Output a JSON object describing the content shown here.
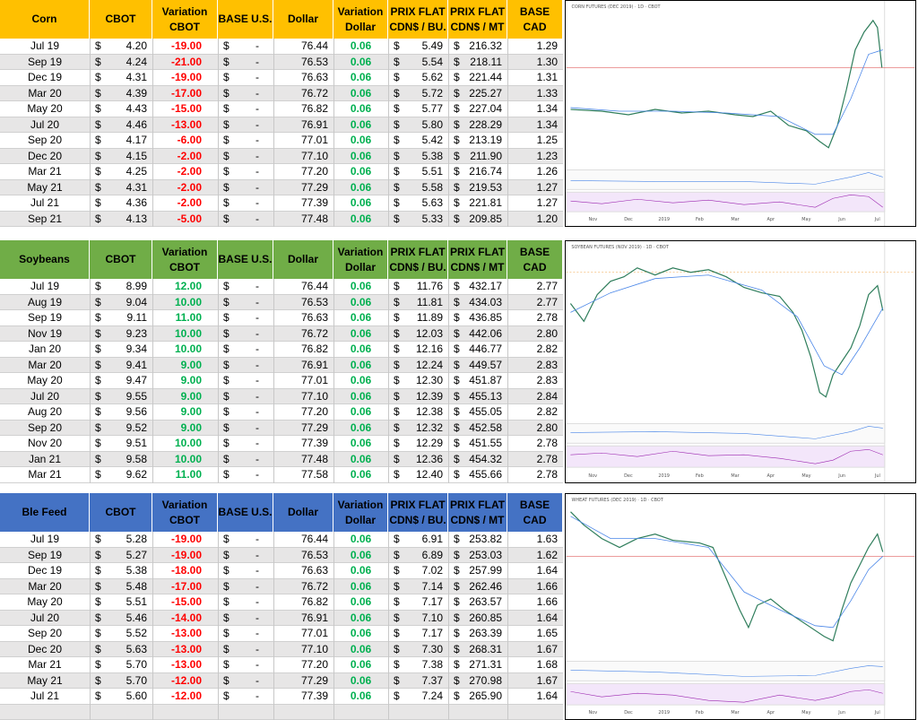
{
  "currency_symbol": "$",
  "empty_value": "-",
  "sections": [
    {
      "header_color": "#ffc000",
      "header": [
        [
          "Corn"
        ],
        [
          "CBOT"
        ],
        [
          "Variation",
          "CBOT"
        ],
        [
          "BASE U.S."
        ],
        [
          "Dollar"
        ],
        [
          "Variation",
          "Dollar"
        ],
        [
          "PRIX FLAT",
          "CDN$ / BU."
        ],
        [
          "PRIX FLAT",
          "CDN$ / MT"
        ],
        [
          "BASE CAD"
        ]
      ],
      "rows": [
        [
          "Jul 19",
          "4.20",
          "-19.00",
          "76.44",
          "0.06",
          "5.49",
          "216.32",
          "1.29"
        ],
        [
          "Sep 19",
          "4.24",
          "-21.00",
          "76.53",
          "0.06",
          "5.54",
          "218.11",
          "1.30"
        ],
        [
          "Dec 19",
          "4.31",
          "-19.00",
          "76.63",
          "0.06",
          "5.62",
          "221.44",
          "1.31"
        ],
        [
          "Mar 20",
          "4.39",
          "-17.00",
          "76.72",
          "0.06",
          "5.72",
          "225.27",
          "1.33"
        ],
        [
          "May 20",
          "4.43",
          "-15.00",
          "76.82",
          "0.06",
          "5.77",
          "227.04",
          "1.34"
        ],
        [
          "Jul 20",
          "4.46",
          "-13.00",
          "76.91",
          "0.06",
          "5.80",
          "228.29",
          "1.34"
        ],
        [
          "Sep 20",
          "4.17",
          "-6.00",
          "77.01",
          "0.06",
          "5.42",
          "213.19",
          "1.25"
        ],
        [
          "Dec 20",
          "4.15",
          "-2.00",
          "77.10",
          "0.06",
          "5.38",
          "211.90",
          "1.23"
        ],
        [
          "Mar 21",
          "4.25",
          "-2.00",
          "77.20",
          "0.06",
          "5.51",
          "216.74",
          "1.26"
        ],
        [
          "May 21",
          "4.31",
          "-2.00",
          "77.29",
          "0.06",
          "5.58",
          "219.53",
          "1.27"
        ],
        [
          "Jul 21",
          "4.36",
          "-2.00",
          "77.39",
          "0.06",
          "5.63",
          "221.81",
          "1.27"
        ],
        [
          "Sep 21",
          "4.13",
          "-5.00",
          "77.48",
          "0.06",
          "5.33",
          "209.85",
          "1.20"
        ]
      ],
      "chart": {
        "title": "CORN FUTURES (DEC 2019) · 1D · CBOT",
        "months": [
          "Nov",
          "Dec",
          "2019",
          "Feb",
          "Mar",
          "Apr",
          "May",
          "Jun",
          "Jul"
        ]
      }
    },
    {
      "header_color": "#70ad47",
      "header": [
        [
          "Soybeans"
        ],
        [
          "CBOT"
        ],
        [
          "Variation",
          "CBOT"
        ],
        [
          "BASE U.S."
        ],
        [
          "Dollar"
        ],
        [
          "Variation",
          "Dollar"
        ],
        [
          "PRIX FLAT",
          "CDN$ / BU."
        ],
        [
          "PRIX FLAT",
          "CDN$ / MT"
        ],
        [
          "BASE CAD"
        ]
      ],
      "rows": [
        [
          "Jul 19",
          "8.99",
          "12.00",
          "76.44",
          "0.06",
          "11.76",
          "432.17",
          "2.77"
        ],
        [
          "Aug 19",
          "9.04",
          "10.00",
          "76.53",
          "0.06",
          "11.81",
          "434.03",
          "2.77"
        ],
        [
          "Sep 19",
          "9.11",
          "11.00",
          "76.63",
          "0.06",
          "11.89",
          "436.85",
          "2.78"
        ],
        [
          "Nov 19",
          "9.23",
          "10.00",
          "76.72",
          "0.06",
          "12.03",
          "442.06",
          "2.80"
        ],
        [
          "Jan 20",
          "9.34",
          "10.00",
          "76.82",
          "0.06",
          "12.16",
          "446.77",
          "2.82"
        ],
        [
          "Mar 20",
          "9.41",
          "9.00",
          "76.91",
          "0.06",
          "12.24",
          "449.57",
          "2.83"
        ],
        [
          "May 20",
          "9.47",
          "9.00",
          "77.01",
          "0.06",
          "12.30",
          "451.87",
          "2.83"
        ],
        [
          "Jul 20",
          "9.55",
          "9.00",
          "77.10",
          "0.06",
          "12.39",
          "455.13",
          "2.84"
        ],
        [
          "Aug 20",
          "9.56",
          "9.00",
          "77.20",
          "0.06",
          "12.38",
          "455.05",
          "2.82"
        ],
        [
          "Sep 20",
          "9.52",
          "9.00",
          "77.29",
          "0.06",
          "12.32",
          "452.58",
          "2.80"
        ],
        [
          "Nov 20",
          "9.51",
          "10.00",
          "77.39",
          "0.06",
          "12.29",
          "451.55",
          "2.78"
        ],
        [
          "Jan 21",
          "9.58",
          "10.00",
          "77.48",
          "0.06",
          "12.36",
          "454.32",
          "2.78"
        ],
        [
          "Mar 21",
          "9.62",
          "11.00",
          "77.58",
          "0.06",
          "12.40",
          "455.66",
          "2.78"
        ]
      ],
      "chart": {
        "title": "SOYBEAN FUTURES (NOV 2019) · 1D · CBOT",
        "months": [
          "Nov",
          "Dec",
          "2019",
          "Feb",
          "Mar",
          "Apr",
          "May",
          "Jun",
          "Jul"
        ]
      }
    },
    {
      "header_color": "#4472c4",
      "header": [
        [
          "Ble Feed"
        ],
        [
          "CBOT"
        ],
        [
          "Variation",
          "CBOT"
        ],
        [
          "BASE U.S."
        ],
        [
          "Dollar"
        ],
        [
          "Variation",
          "Dollar"
        ],
        [
          "PRIX FLAT",
          "CDN$ / BU."
        ],
        [
          "PRIX FLAT",
          "CDN$ / MT"
        ],
        [
          "BASE CAD"
        ]
      ],
      "rows": [
        [
          "Jul 19",
          "5.28",
          "-19.00",
          "76.44",
          "0.06",
          "6.91",
          "253.82",
          "1.63"
        ],
        [
          "Sep 19",
          "5.27",
          "-19.00",
          "76.53",
          "0.06",
          "6.89",
          "253.03",
          "1.62"
        ],
        [
          "Dec 19",
          "5.38",
          "-18.00",
          "76.63",
          "0.06",
          "7.02",
          "257.99",
          "1.64"
        ],
        [
          "Mar 20",
          "5.48",
          "-17.00",
          "76.72",
          "0.06",
          "7.14",
          "262.46",
          "1.66"
        ],
        [
          "May 20",
          "5.51",
          "-15.00",
          "76.82",
          "0.06",
          "7.17",
          "263.57",
          "1.66"
        ],
        [
          "Jul 20",
          "5.46",
          "-14.00",
          "76.91",
          "0.06",
          "7.10",
          "260.85",
          "1.64"
        ],
        [
          "Sep 20",
          "5.52",
          "-13.00",
          "77.01",
          "0.06",
          "7.17",
          "263.39",
          "1.65"
        ],
        [
          "Dec 20",
          "5.63",
          "-13.00",
          "77.10",
          "0.06",
          "7.30",
          "268.31",
          "1.67"
        ],
        [
          "Mar 21",
          "5.70",
          "-13.00",
          "77.20",
          "0.06",
          "7.38",
          "271.31",
          "1.68"
        ],
        [
          "May 21",
          "5.70",
          "-12.00",
          "77.29",
          "0.06",
          "7.37",
          "270.98",
          "1.67"
        ],
        [
          "Jul 21",
          "5.60",
          "-12.00",
          "77.39",
          "0.06",
          "7.24",
          "265.90",
          "1.64"
        ]
      ],
      "chart": {
        "title": "WHEAT FUTURES (DEC 2019) · 1D · CBOT",
        "months": [
          "Nov",
          "Dec",
          "2019",
          "Feb",
          "Mar",
          "Apr",
          "May",
          "Jun",
          "Jul"
        ]
      }
    }
  ]
}
